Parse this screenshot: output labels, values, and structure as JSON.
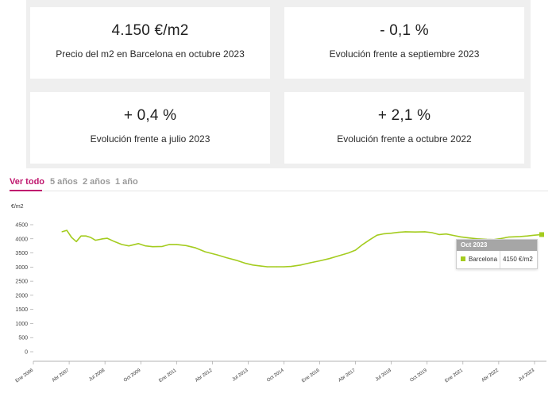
{
  "cards": [
    {
      "value": "4.150 €/m2",
      "label": "Precio del m2 en Barcelona en octubre 2023"
    },
    {
      "value": "- 0,1 %",
      "label": "Evolución frente a septiembre 2023"
    },
    {
      "value": "+ 0,4 %",
      "label": "Evolución frente a julio 2023"
    },
    {
      "value": "+ 2,1 %",
      "label": "Evolución frente a octubre 2022"
    }
  ],
  "range_tabs": [
    "Ver todo",
    "5 años",
    "2 años",
    "1 año"
  ],
  "range_active": 0,
  "colors": {
    "accent": "#c0186f",
    "series": "#a4cc1f",
    "tooltip_header": "#a6a6a6"
  },
  "tooltip": {
    "title": "Oct 2023",
    "series": "Barcelona",
    "value": "4150 €/m2"
  },
  "chart_data": {
    "type": "line",
    "ylabel": "€/m2",
    "ylim": [
      0,
      4500
    ],
    "yticks": [
      0,
      500,
      1000,
      1500,
      2000,
      2500,
      3000,
      3500,
      4000,
      4500
    ],
    "xlim": [
      "2006-01",
      "2023-12"
    ],
    "xticks": [
      {
        "date": "2006-01",
        "label": "Ene 2006"
      },
      {
        "date": "2007-04",
        "label": "Abr 2007"
      },
      {
        "date": "2008-07",
        "label": "Jul 2008"
      },
      {
        "date": "2009-10",
        "label": "Oct 2009"
      },
      {
        "date": "2011-01",
        "label": "Ene 2011"
      },
      {
        "date": "2012-04",
        "label": "Abr 2012"
      },
      {
        "date": "2013-07",
        "label": "Jul 2013"
      },
      {
        "date": "2014-10",
        "label": "Oct 2014"
      },
      {
        "date": "2016-01",
        "label": "Ene 2016"
      },
      {
        "date": "2017-04",
        "label": "Abr 2017"
      },
      {
        "date": "2018-07",
        "label": "Jul 2018"
      },
      {
        "date": "2019-10",
        "label": "Oct 2019"
      },
      {
        "date": "2021-01",
        "label": "Ene 2021"
      },
      {
        "date": "2022-04",
        "label": "Abr 2022"
      },
      {
        "date": "2023-07",
        "label": "Jul 2023"
      }
    ],
    "grid": false,
    "series": [
      {
        "name": "Barcelona",
        "points": [
          [
            "2007-01",
            4250
          ],
          [
            "2007-03",
            4300
          ],
          [
            "2007-05",
            4050
          ],
          [
            "2007-07",
            3900
          ],
          [
            "2007-09",
            4100
          ],
          [
            "2007-11",
            4100
          ],
          [
            "2008-01",
            4050
          ],
          [
            "2008-03",
            3950
          ],
          [
            "2008-06",
            4000
          ],
          [
            "2008-08",
            4020
          ],
          [
            "2008-11",
            3900
          ],
          [
            "2009-02",
            3800
          ],
          [
            "2009-05",
            3750
          ],
          [
            "2009-09",
            3830
          ],
          [
            "2009-12",
            3750
          ],
          [
            "2010-03",
            3720
          ],
          [
            "2010-07",
            3730
          ],
          [
            "2010-10",
            3800
          ],
          [
            "2011-01",
            3800
          ],
          [
            "2011-05",
            3760
          ],
          [
            "2011-09",
            3680
          ],
          [
            "2012-01",
            3540
          ],
          [
            "2012-06",
            3430
          ],
          [
            "2012-10",
            3330
          ],
          [
            "2013-02",
            3240
          ],
          [
            "2013-06",
            3130
          ],
          [
            "2013-09",
            3070
          ],
          [
            "2013-12",
            3040
          ],
          [
            "2014-03",
            3010
          ],
          [
            "2014-07",
            3010
          ],
          [
            "2014-10",
            3010
          ],
          [
            "2015-01",
            3020
          ],
          [
            "2015-05",
            3070
          ],
          [
            "2015-09",
            3150
          ],
          [
            "2016-01",
            3220
          ],
          [
            "2016-05",
            3300
          ],
          [
            "2016-09",
            3400
          ],
          [
            "2017-01",
            3500
          ],
          [
            "2017-04",
            3600
          ],
          [
            "2017-07",
            3800
          ],
          [
            "2017-10",
            3970
          ],
          [
            "2018-01",
            4130
          ],
          [
            "2018-04",
            4180
          ],
          [
            "2018-07",
            4200
          ],
          [
            "2018-10",
            4230
          ],
          [
            "2019-01",
            4250
          ],
          [
            "2019-05",
            4240
          ],
          [
            "2019-09",
            4250
          ],
          [
            "2019-12",
            4220
          ],
          [
            "2020-03",
            4150
          ],
          [
            "2020-06",
            4170
          ],
          [
            "2020-09",
            4120
          ],
          [
            "2020-12",
            4070
          ],
          [
            "2021-03",
            4040
          ],
          [
            "2021-07",
            4000
          ],
          [
            "2021-11",
            3980
          ],
          [
            "2022-02",
            3970
          ],
          [
            "2022-05",
            4010
          ],
          [
            "2022-08",
            4060
          ],
          [
            "2022-10",
            4070
          ],
          [
            "2023-01",
            4080
          ],
          [
            "2023-04",
            4100
          ],
          [
            "2023-07",
            4130
          ],
          [
            "2023-10",
            4150
          ]
        ]
      }
    ]
  }
}
